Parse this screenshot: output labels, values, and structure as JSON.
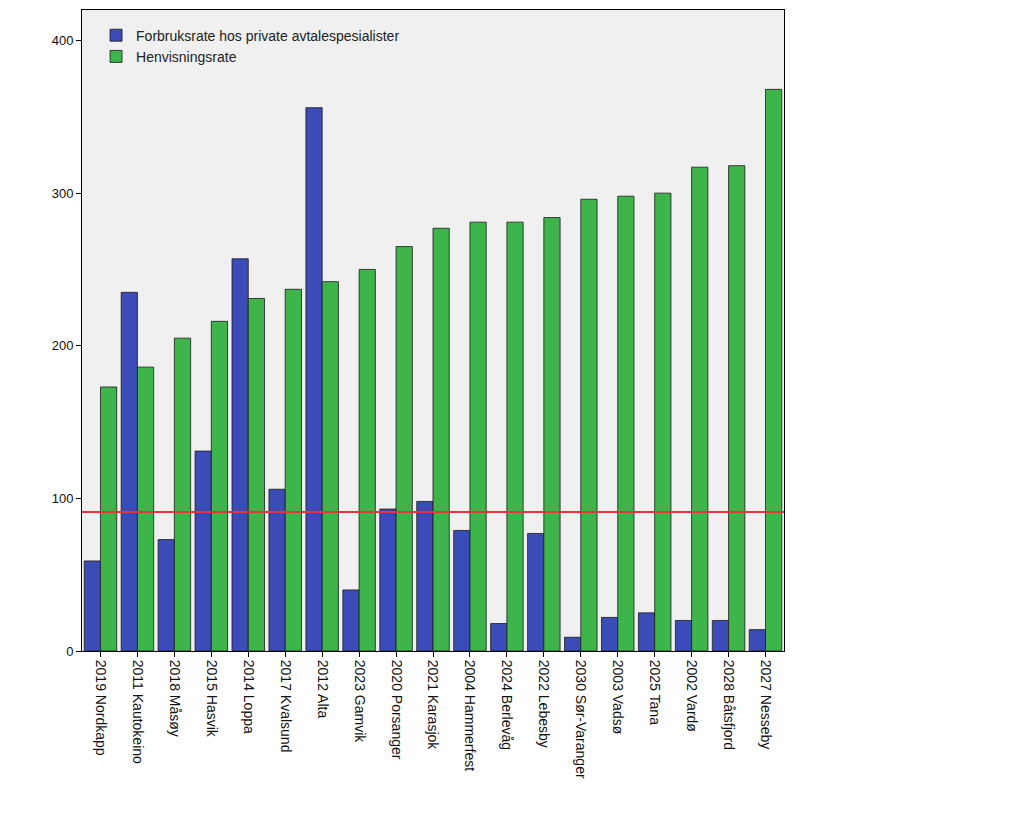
{
  "chart_data": {
    "type": "bar",
    "categories": [
      "2019 Nordkapp",
      "2011 Kautokeino",
      "2018 Måsøy",
      "2015 Hasvik",
      "2014 Loppa",
      "2017 Kvalsund",
      "2012 Alta",
      "2023 Gamvik",
      "2020 Porsanger",
      "2021 Karasjok",
      "2004 Hammerfest",
      "2024 Berlevåg",
      "2022 Lebesby",
      "2030 Sør-Varanger",
      "2003 Vadsø",
      "2025 Tana",
      "2002 Vardø",
      "2028 Båtsfjord",
      "2027 Nesseby"
    ],
    "series": [
      {
        "name": "Forbruksrate hos private avtalespesialister",
        "color": "#3b4cb8",
        "values": [
          59,
          235,
          73,
          131,
          257,
          106,
          356,
          40,
          93,
          98,
          79,
          18,
          77,
          9,
          22,
          25,
          20,
          20,
          14
        ]
      },
      {
        "name": "Henvisningsrate",
        "color": "#3db54a",
        "values": [
          173,
          186,
          205,
          216,
          231,
          237,
          242,
          250,
          265,
          277,
          281,
          281,
          284,
          296,
          298,
          300,
          317,
          318,
          368
        ]
      }
    ],
    "reference_line": {
      "value": 91,
      "color": "#e8333a"
    },
    "ylim": [
      0,
      420
    ],
    "yticks": [
      0,
      100,
      200,
      300,
      400
    ],
    "grid": false,
    "legend": "top-left"
  }
}
